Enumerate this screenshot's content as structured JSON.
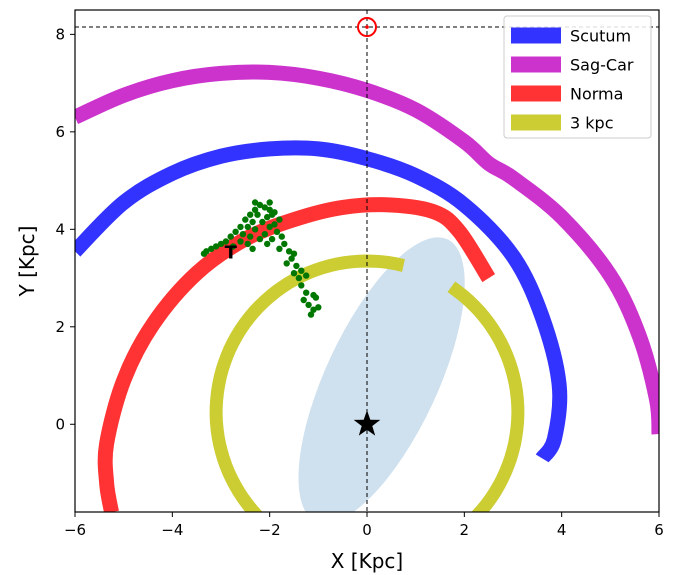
{
  "chart_data": {
    "type": "scatter",
    "xlabel": "X [Kpc]",
    "ylabel": "Y [Kpc]",
    "xlim": [
      -6,
      6
    ],
    "ylim": [
      -1.8,
      8.5
    ],
    "xticks": [
      -6,
      -4,
      -2,
      0,
      2,
      4,
      6
    ],
    "yticks": [
      0,
      2,
      4,
      6,
      8
    ],
    "xtick_labels": [
      "−6",
      "−4",
      "−2",
      "0",
      "2",
      "4",
      "6"
    ],
    "ytick_labels": [
      "0",
      "2",
      "4",
      "6",
      "8"
    ],
    "grid": false,
    "legend_position": "top-right",
    "legend": [
      {
        "label": "Scutum",
        "color": "#3333ff"
      },
      {
        "label": "Sag-Car",
        "color": "#cc33cc"
      },
      {
        "label": "Norma",
        "color": "#ff3333"
      },
      {
        "label": "3 kpc",
        "color": "#cccc33"
      }
    ],
    "arms": [
      {
        "name": "Scutum",
        "color": "#3333ff",
        "points": [
          [
            -6.0,
            3.55
          ],
          [
            -5.0,
            4.55
          ],
          [
            -4.0,
            5.15
          ],
          [
            -3.0,
            5.5
          ],
          [
            -2.0,
            5.65
          ],
          [
            -1.0,
            5.65
          ],
          [
            0.0,
            5.45
          ],
          [
            1.0,
            5.1
          ],
          [
            2.0,
            4.5
          ],
          [
            3.0,
            3.45
          ],
          [
            3.6,
            2.2
          ],
          [
            3.95,
            0.8
          ],
          [
            3.85,
            -0.3
          ],
          [
            3.6,
            -0.7
          ]
        ]
      },
      {
        "name": "Sag-Car",
        "color": "#cc33cc",
        "points": [
          [
            -6.0,
            6.3
          ],
          [
            -5.0,
            6.75
          ],
          [
            -4.0,
            7.05
          ],
          [
            -3.0,
            7.2
          ],
          [
            -2.0,
            7.22
          ],
          [
            -1.0,
            7.1
          ],
          [
            0.0,
            6.85
          ],
          [
            1.0,
            6.45
          ],
          [
            2.0,
            5.8
          ],
          [
            2.5,
            5.35
          ],
          [
            3.0,
            5.05
          ],
          [
            4.0,
            4.25
          ],
          [
            5.0,
            3.05
          ],
          [
            5.6,
            1.8
          ],
          [
            5.95,
            0.5
          ],
          [
            6.0,
            -0.2
          ]
        ]
      },
      {
        "name": "Norma",
        "color": "#ff3333",
        "points": [
          [
            2.5,
            3.0
          ],
          [
            1.9,
            3.95
          ],
          [
            1.4,
            4.35
          ],
          [
            0.5,
            4.5
          ],
          [
            -0.5,
            4.45
          ],
          [
            -1.5,
            4.2
          ],
          [
            -2.5,
            3.8
          ],
          [
            -3.5,
            3.1
          ],
          [
            -4.4,
            2.05
          ],
          [
            -5.0,
            0.9
          ],
          [
            -5.35,
            -0.4
          ],
          [
            -5.35,
            -1.2
          ],
          [
            -5.25,
            -1.8
          ]
        ]
      }
    ],
    "ring_3kpc": {
      "name": "3 kpc",
      "color": "#cccc33",
      "center": [
        0.0,
        0.25
      ],
      "radius": 3.1,
      "gap_deg": [
        56,
        76
      ]
    },
    "bar": {
      "center": [
        0.3,
        0.9
      ],
      "semi_major": 3.2,
      "semi_minor": 1.15,
      "angle_deg": 65,
      "color": "#cfe0ee"
    },
    "sun": {
      "x": 0,
      "y": 8.15,
      "color": "#ff0000"
    },
    "galactic_center": {
      "x": 0,
      "y": 0
    },
    "hline_y": 8.15,
    "vline_x": 0,
    "cluster": {
      "color": "#007700",
      "points": [
        [
          -2.2,
          4.5
        ],
        [
          -2.3,
          4.4
        ],
        [
          -2.1,
          4.45
        ],
        [
          -2.0,
          4.4
        ],
        [
          -2.4,
          4.3
        ],
        [
          -2.25,
          4.3
        ],
        [
          -2.05,
          4.25
        ],
        [
          -1.95,
          4.3
        ],
        [
          -2.5,
          4.2
        ],
        [
          -2.35,
          4.15
        ],
        [
          -2.15,
          4.15
        ],
        [
          -1.9,
          4.1
        ],
        [
          -1.8,
          4.2
        ],
        [
          -2.6,
          4.05
        ],
        [
          -2.45,
          4.05
        ],
        [
          -2.3,
          4.0
        ],
        [
          -2.0,
          4.05
        ],
        [
          -1.85,
          3.95
        ],
        [
          -2.7,
          3.95
        ],
        [
          -2.55,
          3.9
        ],
        [
          -2.4,
          3.85
        ],
        [
          -2.1,
          3.9
        ],
        [
          -1.75,
          3.85
        ],
        [
          -2.8,
          3.85
        ],
        [
          -2.9,
          3.75
        ],
        [
          -3.0,
          3.7
        ],
        [
          -3.1,
          3.65
        ],
        [
          -3.2,
          3.6
        ],
        [
          -3.3,
          3.55
        ],
        [
          -2.6,
          3.75
        ],
        [
          -2.45,
          3.7
        ],
        [
          -1.7,
          3.7
        ],
        [
          -1.95,
          3.8
        ],
        [
          -1.6,
          3.55
        ],
        [
          -1.55,
          3.4
        ],
        [
          -1.45,
          3.25
        ],
        [
          -1.5,
          3.1
        ],
        [
          -1.4,
          3.0
        ],
        [
          -1.35,
          2.85
        ],
        [
          -1.25,
          2.7
        ],
        [
          -1.3,
          2.55
        ],
        [
          -1.2,
          2.45
        ],
        [
          -1.1,
          2.35
        ],
        [
          -1.15,
          2.25
        ],
        [
          -1.05,
          2.6
        ],
        [
          -1.0,
          2.4
        ],
        [
          -1.65,
          3.3
        ],
        [
          -1.5,
          3.5
        ],
        [
          -2.2,
          3.8
        ],
        [
          -2.35,
          3.6
        ],
        [
          -1.8,
          3.6
        ],
        [
          -1.9,
          4.35
        ],
        [
          -2.0,
          4.55
        ],
        [
          -2.3,
          4.55
        ],
        [
          -1.35,
          3.15
        ],
        [
          -1.25,
          3.05
        ],
        [
          -3.35,
          3.5
        ],
        [
          -2.75,
          3.65
        ],
        [
          -2.05,
          3.7
        ],
        [
          -1.1,
          2.65
        ]
      ]
    },
    "cluster_label": {
      "text": "T",
      "x": -2.8,
      "y": 3.4
    }
  }
}
